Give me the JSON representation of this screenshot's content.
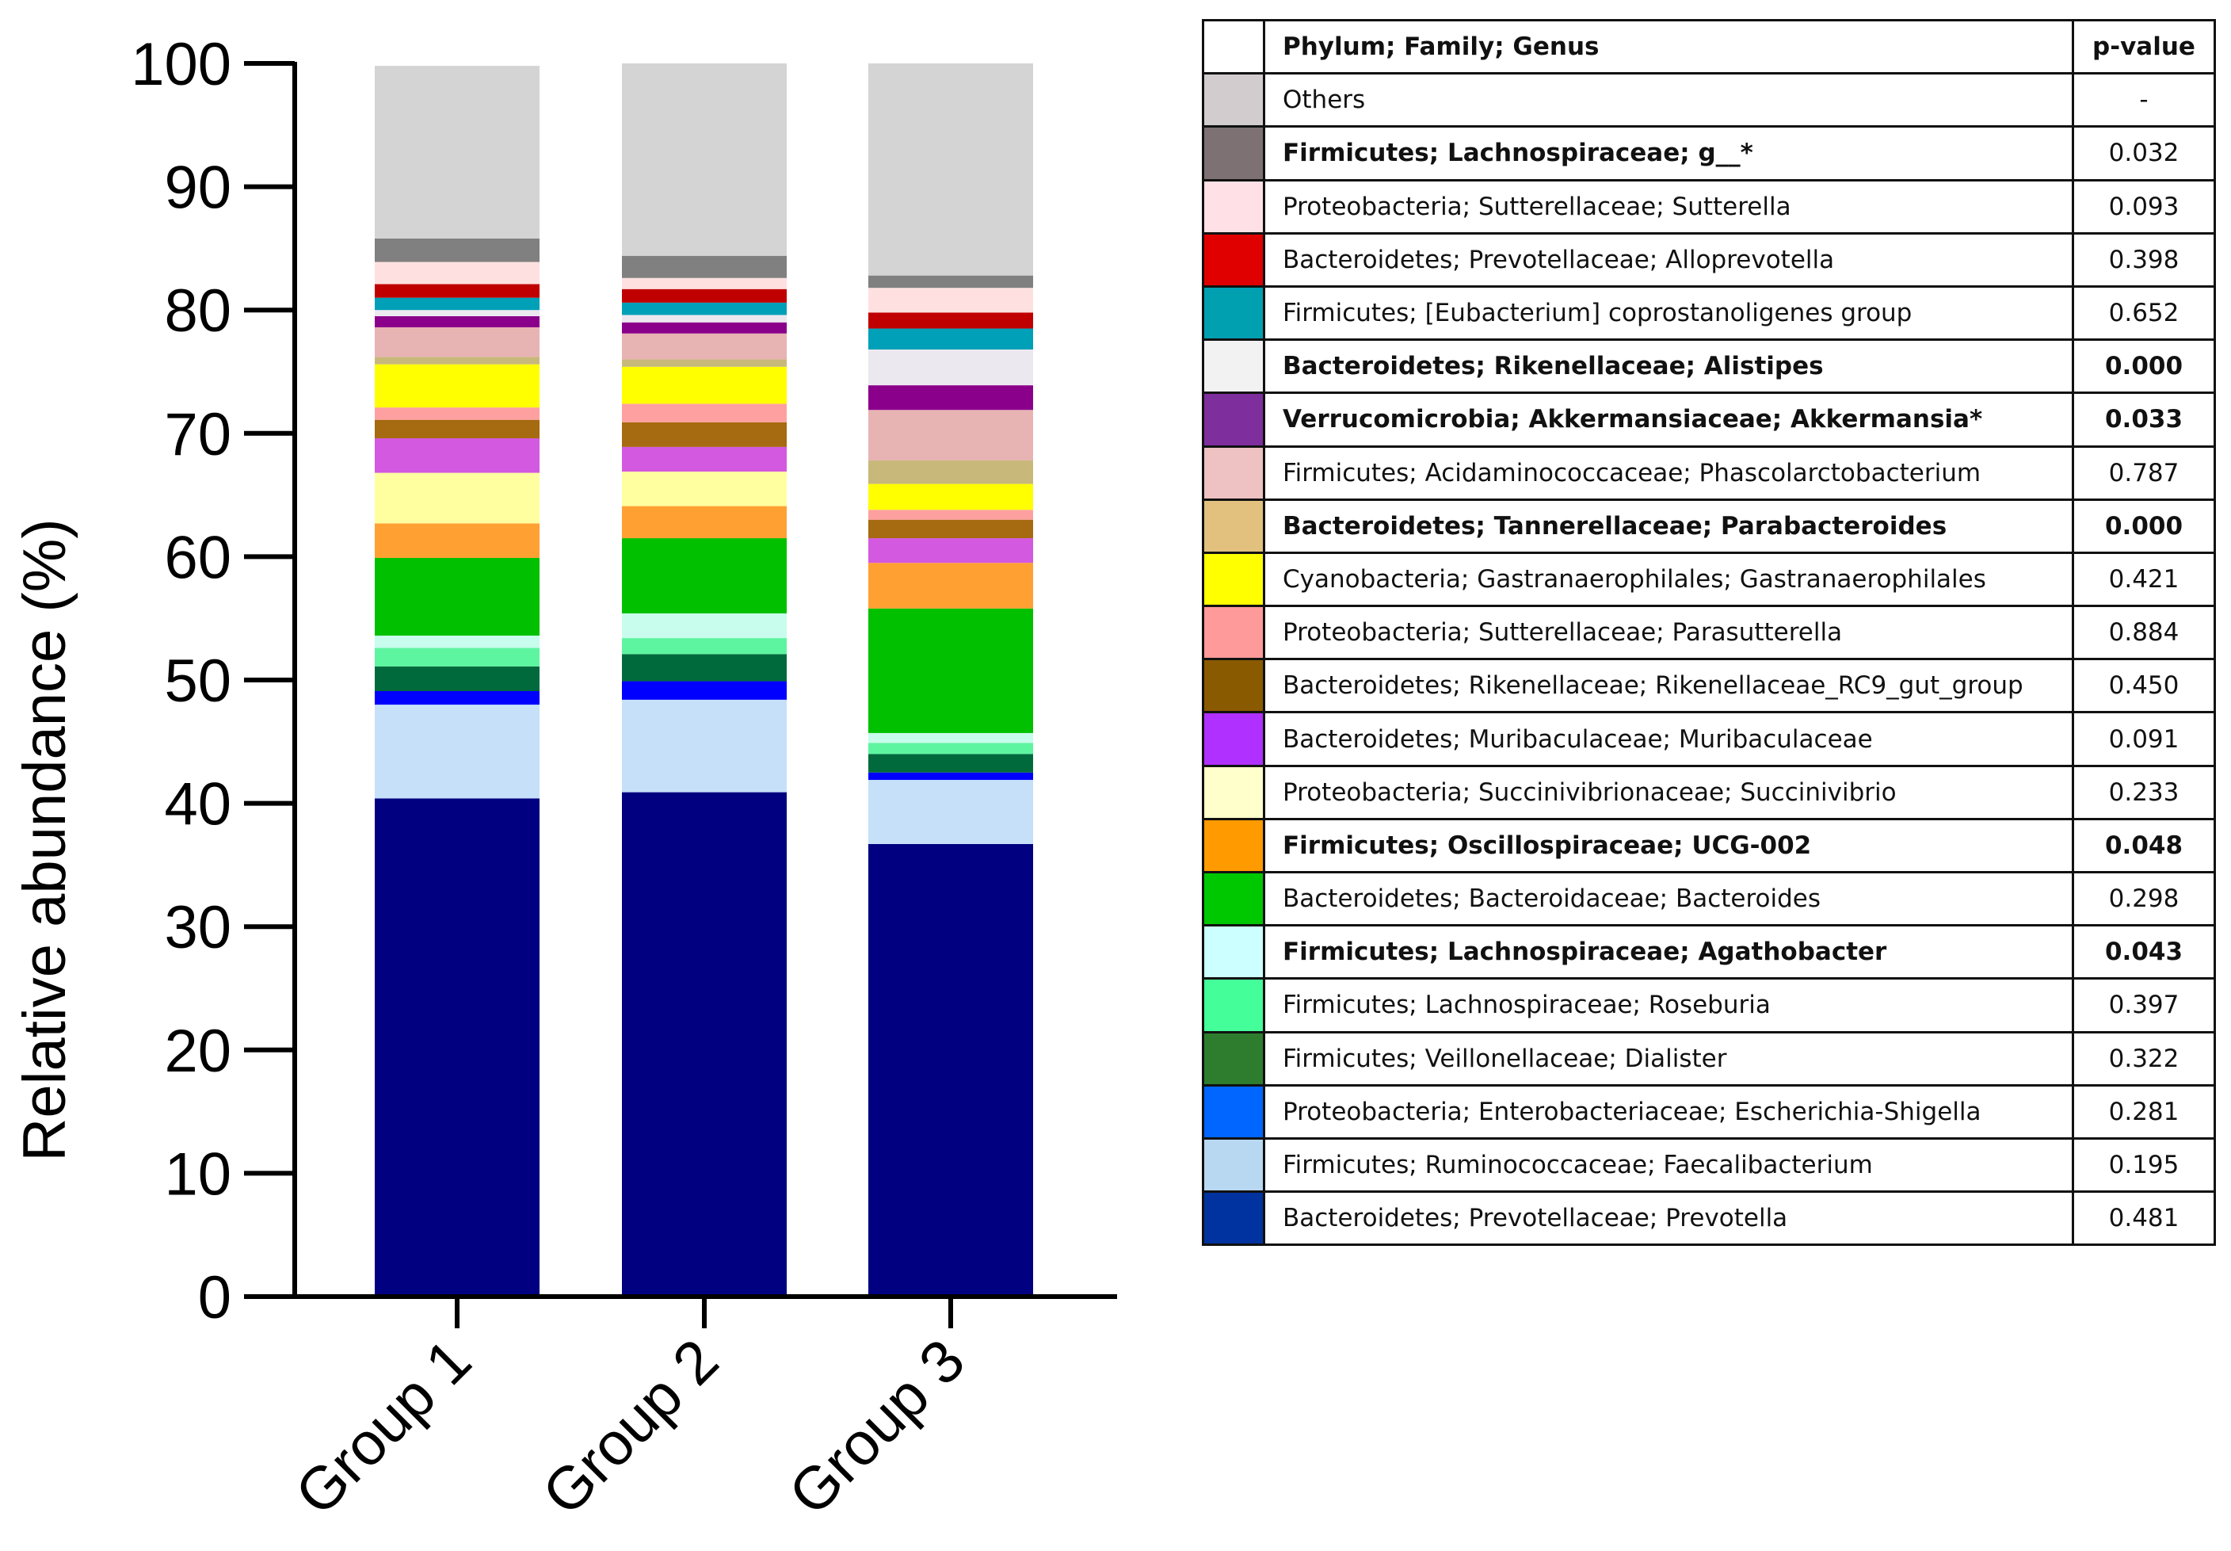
{
  "chart_data": {
    "type": "bar",
    "stacked": true,
    "title": "",
    "xlabel": "",
    "ylabel": "Relative abundance (%)",
    "ylim": [
      0,
      100
    ],
    "yticks": [
      0,
      10,
      20,
      30,
      40,
      50,
      60,
      70,
      80,
      90,
      100
    ],
    "categories": [
      "Group 1",
      "Group 2",
      "Group 3"
    ],
    "series": [
      {
        "name": "Bacteroidetes; Prevotellaceae; Prevotella",
        "color": "#000080",
        "values": [
          40.4,
          40.9,
          36.7
        ]
      },
      {
        "name": "Firmicutes; Ruminococcaceae; Faecalibacterium",
        "color": "#C5E0F8",
        "values": [
          7.6,
          7.5,
          5.2
        ]
      },
      {
        "name": "Proteobacteria; Enterobacteriaceae; Escherichia-Shigella",
        "color": "#0000FF",
        "values": [
          1.1,
          1.5,
          0.6
        ]
      },
      {
        "name": "Firmicutes; Veillonellaceae; Dialister",
        "color": "#006A3C",
        "values": [
          2.0,
          2.2,
          1.5
        ]
      },
      {
        "name": "Firmicutes; Lachnospiraceae; Roseburia",
        "color": "#5DF5A0",
        "values": [
          1.5,
          1.3,
          0.9
        ]
      },
      {
        "name": "Firmicutes; Lachnospiraceae; Agathobacter",
        "color": "#C8FCEC",
        "values": [
          1.0,
          2.0,
          0.8
        ]
      },
      {
        "name": "Bacteroidetes; Bacteroidaceae; Bacteroides",
        "color": "#00C000",
        "values": [
          6.3,
          6.1,
          10.1
        ]
      },
      {
        "name": "Firmicutes; Oscillospiraceae; UCG-002",
        "color": "#FFA033",
        "values": [
          2.8,
          2.6,
          3.7
        ]
      },
      {
        "name": "Proteobacteria; Succinivibrionaceae; Succinivibrio",
        "color": "#FFFFA0",
        "values": [
          4.1,
          2.8,
          0.0
        ]
      },
      {
        "name": "Bacteroidetes; Muribaculaceae; Muribaculaceae",
        "color": "#D359E0",
        "values": [
          2.8,
          2.0,
          2.0
        ]
      },
      {
        "name": "Bacteroidetes; Rikenellaceae; Rikenellaceae_RC9_gut_group",
        "color": "#A66A10",
        "values": [
          1.5,
          2.0,
          1.5
        ]
      },
      {
        "name": "Proteobacteria; Sutterellaceae; Parasutterella",
        "color": "#FFA0A0",
        "values": [
          1.0,
          1.5,
          0.8
        ]
      },
      {
        "name": "Cyanobacteria; Gastranaerophilales; Gastranaerophilales",
        "color": "#FFFF00",
        "values": [
          3.5,
          3.0,
          2.1
        ]
      },
      {
        "name": "Bacteroidetes; Tannerellaceae; Parabacteroides",
        "color": "#C8B87A",
        "values": [
          0.6,
          0.6,
          1.9
        ]
      },
      {
        "name": "Firmicutes; Acidaminococcaceae; Phascolarctobacterium",
        "color": "#E8B3B3",
        "values": [
          2.4,
          2.1,
          4.1
        ]
      },
      {
        "name": "Verrucomicrobia; Akkermansiaceae; Akkermansia*",
        "color": "#8B008B",
        "values": [
          0.9,
          0.9,
          2.0
        ]
      },
      {
        "name": "Bacteroidetes; Rikenellaceae; Alistipes",
        "color": "#ECE8F0",
        "values": [
          0.5,
          0.6,
          2.9
        ]
      },
      {
        "name": "Firmicutes; [Eubacterium] coprostanoligenes group",
        "color": "#00A0B8",
        "values": [
          1.0,
          1.0,
          1.7
        ]
      },
      {
        "name": "Bacteroidetes; Prevotellaceae; Alloprevotella",
        "color": "#C00000",
        "values": [
          1.1,
          1.1,
          1.3
        ]
      },
      {
        "name": "Proteobacteria; Sutterellaceae; Sutterella",
        "color": "#FFE0E0",
        "values": [
          1.8,
          0.9,
          2.0
        ]
      },
      {
        "name": "Firmicutes; Lachnospiraceae; g__*",
        "color": "#808080",
        "values": [
          1.9,
          1.8,
          1.0
        ]
      },
      {
        "name": "Others",
        "color": "#D4D4D4",
        "values": [
          14.0,
          15.6,
          17.2
        ]
      }
    ]
  },
  "legend": {
    "header": {
      "taxon": "Phylum; Family; Genus",
      "pvalue": "p-value"
    },
    "rows": [
      {
        "color": "#D2CCCF",
        "label": "Others",
        "p": "-",
        "bold": false
      },
      {
        "color": "#7D7173",
        "label": "Firmicutes; Lachnospiraceae;  g__*",
        "p": "0.032",
        "bold": true,
        "bold_p": false
      },
      {
        "color": "#FFE0E6",
        "label": "Proteobacteria; Sutterellaceae; Sutterella",
        "p": "0.093",
        "bold": false
      },
      {
        "color": "#E00000",
        "label": "Bacteroidetes; Prevotellaceae; Alloprevotella",
        "p": "0.398",
        "bold": false
      },
      {
        "color": "#00A0B0",
        "label": "Firmicutes; [Eubacterium] coprostanoligenes group",
        "p": "0.652",
        "bold": false
      },
      {
        "color": "#F2F2F2",
        "label": "Bacteroidetes; Rikenellaceae; Alistipes",
        "p": "0.000",
        "bold": true,
        "bold_p": true
      },
      {
        "color": "#7F2E9E",
        "label": "Verrucomicrobia;  Akkermansiaceae; Akkermansia*",
        "p": "0.033",
        "bold": true,
        "bold_p": true
      },
      {
        "color": "#EEC2C2",
        "label": "Firmicutes; Acidaminococcaceae; Phascolarctobacterium",
        "p": "0.787",
        "bold": false
      },
      {
        "color": "#E2C17E",
        "label": "Bacteroidetes; Tannerellaceae; Parabacteroides",
        "p": "0.000",
        "bold": true,
        "bold_p": true
      },
      {
        "color": "#FFFF00",
        "label": "Cyanobacteria; Gastranaerophilales; Gastranaerophilales",
        "p": "0.421",
        "bold": false
      },
      {
        "color": "#FF9A9A",
        "label": "Proteobacteria; Sutterellaceae; Parasutterella",
        "p": "0.884",
        "bold": false
      },
      {
        "color": "#8A5A00",
        "label": "Bacteroidetes; Rikenellaceae; Rikenellaceae_RC9_gut_group",
        "p": "0.450",
        "bold": false
      },
      {
        "color": "#B030FF",
        "label": "Bacteroidetes; Muribaculaceae; Muribaculaceae",
        "p": "0.091",
        "bold": false
      },
      {
        "color": "#FFFFCC",
        "label": "Proteobacteria; Succinivibrionaceae; Succinivibrio",
        "p": "0.233",
        "bold": false
      },
      {
        "color": "#FF9A00",
        "label": "Firmicutes; Oscillospiraceae; UCG-002",
        "p": "0.048",
        "bold": true,
        "bold_p": true
      },
      {
        "color": "#00C800",
        "label": "Bacteroidetes; Bacteroidaceae; Bacteroides",
        "p": "0.298",
        "bold": false
      },
      {
        "color": "#CCFFFF",
        "label": "Firmicutes; Lachnospiraceae;  Agathobacter",
        "p": "0.043",
        "bold": true,
        "bold_p": true
      },
      {
        "color": "#44FF99",
        "label": "Firmicutes; Lachnospiraceae; Roseburia",
        "p": "0.397",
        "bold": false
      },
      {
        "color": "#2E7D2E",
        "label": "Firmicutes; Veillonellaceae; Dialister",
        "p": "0.322",
        "bold": false
      },
      {
        "color": "#0066FF",
        "label": "Proteobacteria; Enterobacteriaceae; Escherichia-Shigella",
        "p": "0.281",
        "bold": false
      },
      {
        "color": "#B8D8F2",
        "label": "Firmicutes; Ruminococcaceae; Faecalibacterium",
        "p": "0.195",
        "bold": false
      },
      {
        "color": "#0033A0",
        "label": "Bacteroidetes; Prevotellaceae; Prevotella",
        "p": "0.481",
        "bold": false
      }
    ]
  }
}
